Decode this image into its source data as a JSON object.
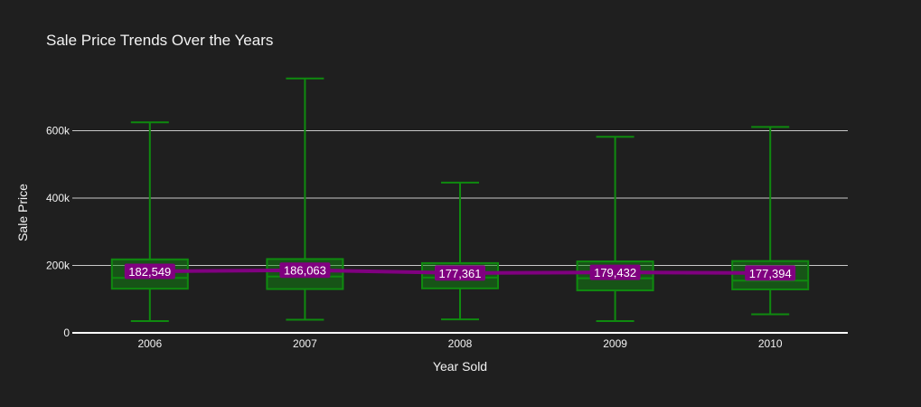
{
  "chart_data": {
    "type": "box",
    "title": "Sale Price Trends Over the Years",
    "xlabel": "Year Sold",
    "ylabel": "Sale Price",
    "categories": [
      "2006",
      "2007",
      "2008",
      "2009",
      "2010"
    ],
    "ylim": [
      0,
      800000
    ],
    "yticks": [
      0,
      200000,
      400000,
      600000
    ],
    "ytick_labels": [
      "0",
      "200k",
      "400k",
      "600k"
    ],
    "box_series": [
      {
        "year": "2006",
        "min": 35000,
        "q1": 131000,
        "median": 163000,
        "q3": 218000,
        "max": 625000
      },
      {
        "year": "2007",
        "min": 39000,
        "q1": 130000,
        "median": 167000,
        "q3": 219000,
        "max": 755000
      },
      {
        "year": "2008",
        "min": 40000,
        "q1": 132000,
        "median": 164000,
        "q3": 207000,
        "max": 446000
      },
      {
        "year": "2009",
        "min": 35000,
        "q1": 126000,
        "median": 162000,
        "q3": 212000,
        "max": 582000
      },
      {
        "year": "2010",
        "min": 55000,
        "q1": 129000,
        "median": 155000,
        "q3": 213000,
        "max": 611000
      }
    ],
    "mean_series": {
      "values": [
        182549,
        186063,
        177361,
        179432,
        177394
      ],
      "labels": [
        "182,549",
        "186,063",
        "177,361",
        "179,432",
        "177,394"
      ]
    },
    "grid": true,
    "legend": "none",
    "colors": {
      "background": "#1f1f1f",
      "box": "#0f8a0f",
      "mean_line": "#800080",
      "grid": "#c8c8c8",
      "text": "#f2f2f2"
    }
  }
}
